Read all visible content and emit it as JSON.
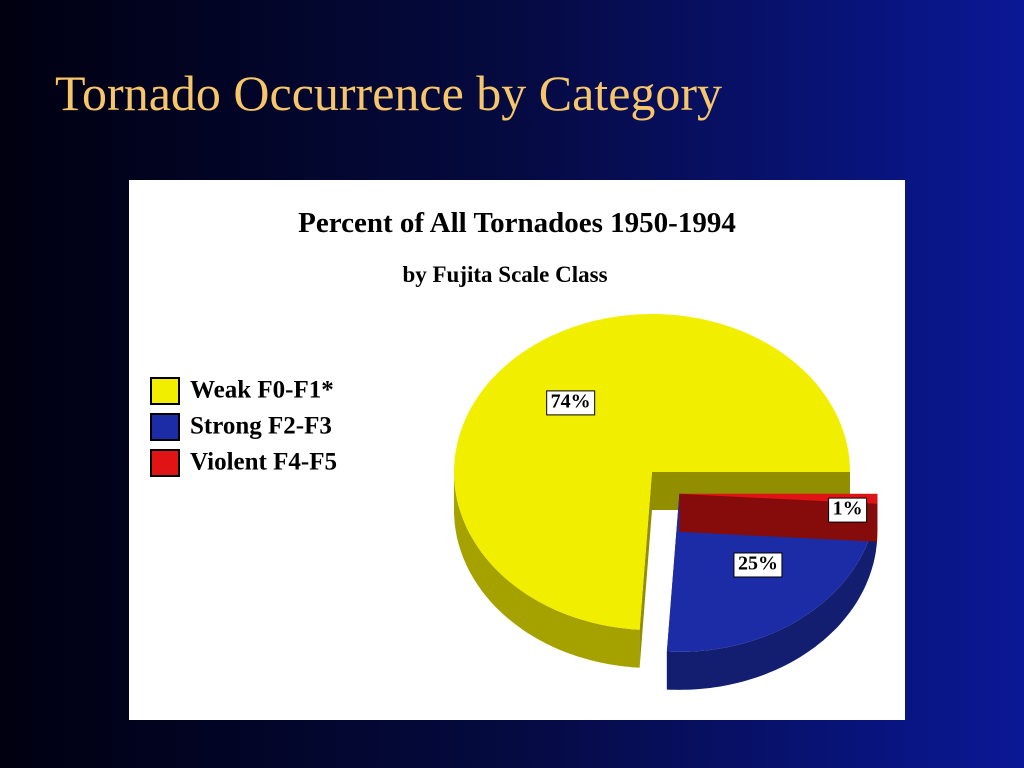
{
  "slide_title": "Tornado Occurrence by Category",
  "chart_data": {
    "type": "pie",
    "title": "Percent of All Tornadoes 1950-1994",
    "subtitle": "by Fujita Scale Class",
    "categories": [
      "Weak  F0-F1*",
      "Strong  F2-F3",
      "Violent  F4-F5"
    ],
    "values": [
      74,
      25,
      1
    ],
    "value_labels": [
      "74%",
      "25%",
      "1%"
    ],
    "colors": [
      "#f2ee00",
      "#1c2ca6",
      "#e01414"
    ],
    "legend": "left"
  }
}
